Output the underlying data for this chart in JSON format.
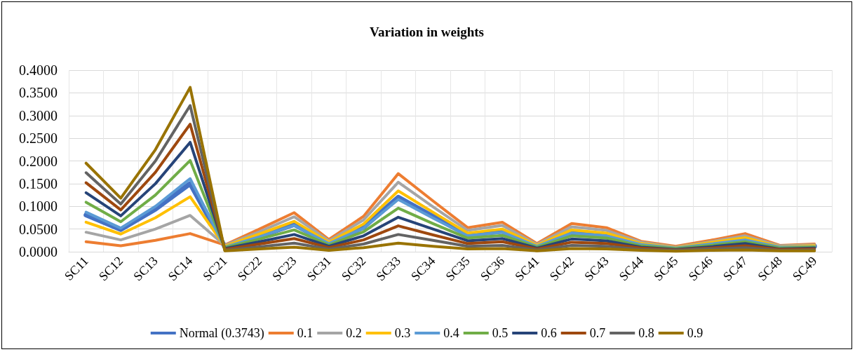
{
  "chart_data": {
    "type": "line",
    "title": "Variation in weights",
    "categories": [
      "SC11",
      "SC12",
      "SC13",
      "SC14",
      "SC21",
      "SC22",
      "SC23",
      "SC31",
      "SC32",
      "SC33",
      "SC34",
      "SC35",
      "SC36",
      "SC41",
      "SC42",
      "SC43",
      "SC44",
      "SC45",
      "SC46",
      "SC47",
      "SC48",
      "SC49"
    ],
    "ylim": [
      0,
      0.4
    ],
    "yticks": [
      {
        "value": 0,
        "label": "0.0000"
      },
      {
        "value": 0.05,
        "label": "0.0500"
      },
      {
        "value": 0.1,
        "label": "0.1000"
      },
      {
        "value": 0.15,
        "label": "0.1500"
      },
      {
        "value": 0.2,
        "label": "0.2000"
      },
      {
        "value": 0.25,
        "label": "0.2500"
      },
      {
        "value": 0.3,
        "label": "0.3000"
      },
      {
        "value": 0.35,
        "label": "0.3500"
      },
      {
        "value": 0.4,
        "label": "0.4000"
      }
    ],
    "grid": true,
    "legend": "bottom",
    "marker": "none",
    "line_style": "solid",
    "series": [
      {
        "name": "Normal (0.3743)",
        "color": "#4472c4",
        "values": [
          0.081,
          0.049,
          0.094,
          0.15,
          0.011,
          0.034,
          0.06,
          0.019,
          0.054,
          0.12,
          0.078,
          0.037,
          0.045,
          0.013,
          0.043,
          0.037,
          0.016,
          0.008,
          0.018,
          0.028,
          0.01,
          0.012
        ]
      },
      {
        "name": "0.1",
        "color": "#ed7d31",
        "values": [
          0.022,
          0.013,
          0.025,
          0.04,
          0.015,
          0.05,
          0.086,
          0.027,
          0.078,
          0.172,
          0.112,
          0.053,
          0.065,
          0.018,
          0.062,
          0.053,
          0.023,
          0.012,
          0.025,
          0.04,
          0.014,
          0.017
        ]
      },
      {
        "name": "0.2",
        "color": "#a5a5a5",
        "values": [
          0.043,
          0.026,
          0.05,
          0.08,
          0.014,
          0.044,
          0.077,
          0.024,
          0.07,
          0.153,
          0.099,
          0.047,
          0.058,
          0.016,
          0.055,
          0.047,
          0.021,
          0.01,
          0.022,
          0.035,
          0.013,
          0.015
        ]
      },
      {
        "name": "0.3",
        "color": "#ffc000",
        "values": [
          0.065,
          0.039,
          0.075,
          0.121,
          0.012,
          0.039,
          0.067,
          0.021,
          0.061,
          0.134,
          0.087,
          0.041,
          0.05,
          0.014,
          0.048,
          0.041,
          0.018,
          0.009,
          0.02,
          0.031,
          0.011,
          0.013
        ]
      },
      {
        "name": "0.4",
        "color": "#5b9bd5",
        "values": [
          0.087,
          0.052,
          0.1,
          0.161,
          0.01,
          0.033,
          0.058,
          0.018,
          0.052,
          0.115,
          0.074,
          0.035,
          0.043,
          0.012,
          0.041,
          0.035,
          0.016,
          0.008,
          0.017,
          0.026,
          0.01,
          0.011
        ]
      },
      {
        "name": "0.5",
        "color": "#70ad47",
        "values": [
          0.109,
          0.066,
          0.125,
          0.201,
          0.009,
          0.028,
          0.048,
          0.015,
          0.044,
          0.096,
          0.062,
          0.03,
          0.036,
          0.01,
          0.035,
          0.03,
          0.013,
          0.007,
          0.014,
          0.022,
          0.008,
          0.01
        ]
      },
      {
        "name": "0.6",
        "color": "#264478",
        "values": [
          0.13,
          0.079,
          0.15,
          0.241,
          0.007,
          0.022,
          0.038,
          0.012,
          0.035,
          0.076,
          0.05,
          0.024,
          0.029,
          0.008,
          0.028,
          0.024,
          0.01,
          0.005,
          0.011,
          0.018,
          0.006,
          0.008
        ]
      },
      {
        "name": "0.7",
        "color": "#9e480e",
        "values": [
          0.152,
          0.092,
          0.175,
          0.281,
          0.005,
          0.017,
          0.029,
          0.009,
          0.026,
          0.057,
          0.037,
          0.018,
          0.022,
          0.006,
          0.021,
          0.018,
          0.008,
          0.004,
          0.008,
          0.013,
          0.005,
          0.006
        ]
      },
      {
        "name": "0.8",
        "color": "#636363",
        "values": [
          0.174,
          0.105,
          0.2,
          0.322,
          0.003,
          0.011,
          0.019,
          0.006,
          0.017,
          0.038,
          0.025,
          0.012,
          0.014,
          0.004,
          0.014,
          0.012,
          0.005,
          0.003,
          0.006,
          0.009,
          0.003,
          0.004
        ]
      },
      {
        "name": "0.9",
        "color": "#997300",
        "values": [
          0.195,
          0.118,
          0.225,
          0.362,
          0.002,
          0.006,
          0.01,
          0.003,
          0.009,
          0.019,
          0.012,
          0.006,
          0.007,
          0.002,
          0.007,
          0.006,
          0.003,
          0.001,
          0.003,
          0.004,
          0.002,
          0.002
        ]
      }
    ]
  }
}
